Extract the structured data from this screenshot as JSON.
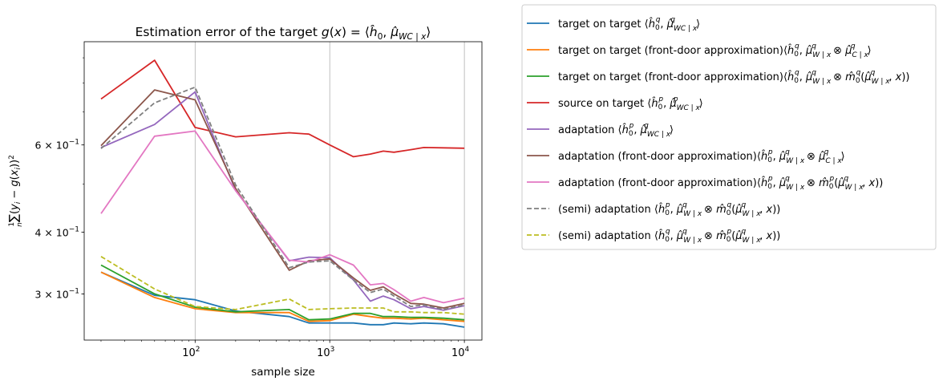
{
  "chart_data": {
    "type": "line",
    "title": "Estimation error of the target g(x) = ⟨ĥ₀, μ̂_WC|x⟩",
    "xlabel": "sample size",
    "ylabel": "(1/n) ∑ (yᵢ − g(xᵢ))²",
    "x_scale": "log",
    "y_scale": "log",
    "xlim": [
      15,
      13500
    ],
    "ylim": [
      0.242,
      0.97
    ],
    "x_ticks": [
      100,
      1000,
      10000
    ],
    "x_tick_labels": [
      {
        "base": "10",
        "exp": "2"
      },
      {
        "base": "10",
        "exp": "3"
      },
      {
        "base": "10",
        "exp": "4"
      }
    ],
    "y_ticks": [
      0.3,
      0.4,
      0.6
    ],
    "y_tick_labels": [
      {
        "mant": "3 × 10",
        "exp": "−1"
      },
      {
        "mant": "4 × 10",
        "exp": "−1"
      },
      {
        "mant": "6 × 10",
        "exp": "−1"
      }
    ],
    "grid": "vertical lines at major x ticks",
    "legend_placement": "outside right, top",
    "x": [
      20,
      50,
      100,
      200,
      500,
      700,
      1000,
      1500,
      2000,
      2500,
      3000,
      4000,
      5000,
      7000,
      10000
    ],
    "series": [
      {
        "name": "target on target ⟨ĥ₀^q, μ̂^q_WC|x⟩",
        "color": "#1f77b4",
        "dash": "solid",
        "values": [
          0.332,
          0.298,
          0.292,
          0.277,
          0.27,
          0.262,
          0.262,
          0.262,
          0.26,
          0.26,
          0.262,
          0.261,
          0.262,
          0.261,
          0.257
        ]
      },
      {
        "name": "target on target (front-door approximation)⟨ĥ₀^q, μ̂^q_W|x ⊗ μ̂^q_C|x⟩",
        "color": "#ff7f0e",
        "dash": "solid",
        "values": [
          0.332,
          0.295,
          0.28,
          0.275,
          0.275,
          0.264,
          0.265,
          0.273,
          0.27,
          0.268,
          0.268,
          0.267,
          0.268,
          0.266,
          0.264
        ]
      },
      {
        "name": "target on target (front-door approximation)⟨ĥ₀^q, μ̂^q_W|x ⊗ m̂₀^q(μ̂^q_W|x, x))",
        "color": "#2ca02c",
        "dash": "solid",
        "values": [
          0.343,
          0.3,
          0.282,
          0.276,
          0.279,
          0.266,
          0.267,
          0.274,
          0.274,
          0.27,
          0.27,
          0.269,
          0.269,
          0.268,
          0.266
        ]
      },
      {
        "name": "source on target ⟨ĥ₀^p, μ̂^p_WC|x⟩",
        "color": "#d62728",
        "dash": "solid",
        "values": [
          0.743,
          0.89,
          0.651,
          0.623,
          0.635,
          0.631,
          0.6,
          0.568,
          0.575,
          0.583,
          0.58,
          0.587,
          0.593,
          0.592,
          0.591
        ]
      },
      {
        "name": "adaptation ⟨ĥ₀^p, μ̂^q_WC|x⟩",
        "color": "#9467bd",
        "dash": "solid",
        "values": [
          0.593,
          0.66,
          0.768,
          0.485,
          0.35,
          0.356,
          0.355,
          0.32,
          0.29,
          0.297,
          0.292,
          0.28,
          0.283,
          0.278,
          0.284
        ]
      },
      {
        "name": "adaptation (front-door approximation)⟨ĥ₀^p, μ̂^q_W|x ⊗ μ̂^q_C|x⟩",
        "color": "#8c564b",
        "dash": "solid",
        "values": [
          0.598,
          0.775,
          0.74,
          0.49,
          0.335,
          0.35,
          0.353,
          0.323,
          0.305,
          0.31,
          0.3,
          0.287,
          0.286,
          0.281,
          0.287
        ]
      },
      {
        "name": "adaptation (front-door approximation)⟨ĥ₀^p, μ̂^q_W|x ⊗ m̂₀^p(μ̂^q_W|x, x))",
        "color": "#e377c2",
        "dash": "solid",
        "values": [
          0.436,
          0.625,
          0.64,
          0.485,
          0.351,
          0.348,
          0.36,
          0.343,
          0.313,
          0.315,
          0.306,
          0.29,
          0.295,
          0.288,
          0.294
        ]
      },
      {
        "name": "(semi) adaptation ⟨ĥ₀^p, μ̂^q_W|x ⊗ m̂₀^q(μ̂^q_W|x, x))",
        "color": "#7f7f7f",
        "dash": "dashed",
        "values": [
          0.59,
          0.73,
          0.785,
          0.498,
          0.339,
          0.348,
          0.35,
          0.32,
          0.302,
          0.307,
          0.297,
          0.283,
          0.285,
          0.279,
          0.285
        ]
      },
      {
        "name": "(semi) adaptation ⟨ĥ₀^q, μ̂^q_W|x ⊗ m̂₀^p(μ̂^q_W|x, x))",
        "color": "#bcbd22",
        "dash": "dashed",
        "values": [
          0.357,
          0.307,
          0.283,
          0.279,
          0.293,
          0.279,
          0.28,
          0.281,
          0.281,
          0.281,
          0.276,
          0.276,
          0.275,
          0.275,
          0.273
        ]
      }
    ]
  }
}
